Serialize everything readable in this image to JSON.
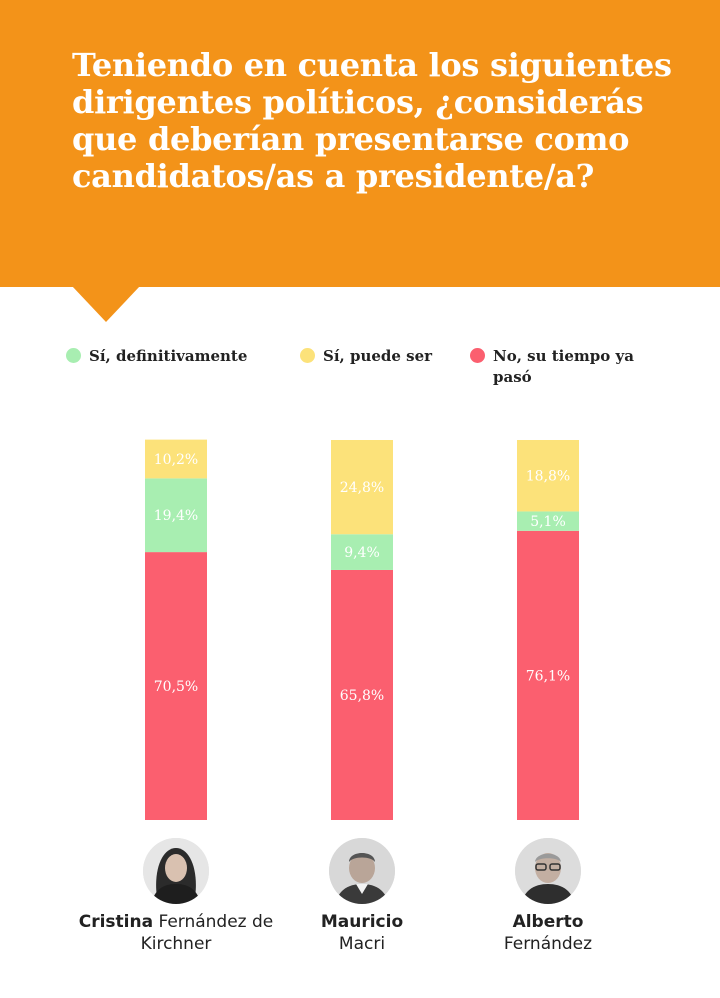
{
  "header": {
    "title": "Teniendo en cuenta los siguientes dirigentes políticos, ¿considerás que deberían presentarse como candidatos/as a presidente/a?"
  },
  "colors": {
    "header_bg": "#f39319",
    "si_definitivamente": "#a8eeb1",
    "si_puede_ser": "#fce27a",
    "no_su_tiempo_ya_paso": "#fb5f6f"
  },
  "legend": [
    {
      "label": "Sí, definitivamente",
      "color": "#a8eeb1"
    },
    {
      "label": "Sí, puede ser",
      "color": "#fce27a"
    },
    {
      "label": "No, su tiempo ya pasó",
      "color": "#fb5f6f"
    }
  ],
  "candidates": [
    {
      "first": "Cristina",
      "rest": "Fernández de Kirchner"
    },
    {
      "first": "Mauricio",
      "rest": "Macri"
    },
    {
      "first": "Alberto",
      "rest": "Fernández"
    }
  ],
  "chart_data": {
    "type": "bar",
    "stacked": true,
    "legend_position": "top",
    "grid": false,
    "categories": [
      "Cristina Fernández de Kirchner",
      "Mauricio Macri",
      "Alberto Fernández"
    ],
    "series": [
      {
        "name": "No, su tiempo ya pasó",
        "color": "#fb5f6f",
        "values": [
          70.5,
          65.8,
          76.1
        ],
        "labels": [
          "70,5%",
          "65,8%",
          "76,1%"
        ]
      },
      {
        "name": "Sí, definitivamente",
        "color": "#a8eeb1",
        "values": [
          19.4,
          9.4,
          5.1
        ],
        "labels": [
          "19,4%",
          "9,4%",
          "5,1%"
        ]
      },
      {
        "name": "Sí, puede ser",
        "color": "#fce27a",
        "values": [
          10.2,
          24.8,
          18.8
        ],
        "labels": [
          "10,2%",
          "24,8%",
          "18,8%"
        ]
      }
    ],
    "ylim": [
      0,
      100
    ]
  }
}
